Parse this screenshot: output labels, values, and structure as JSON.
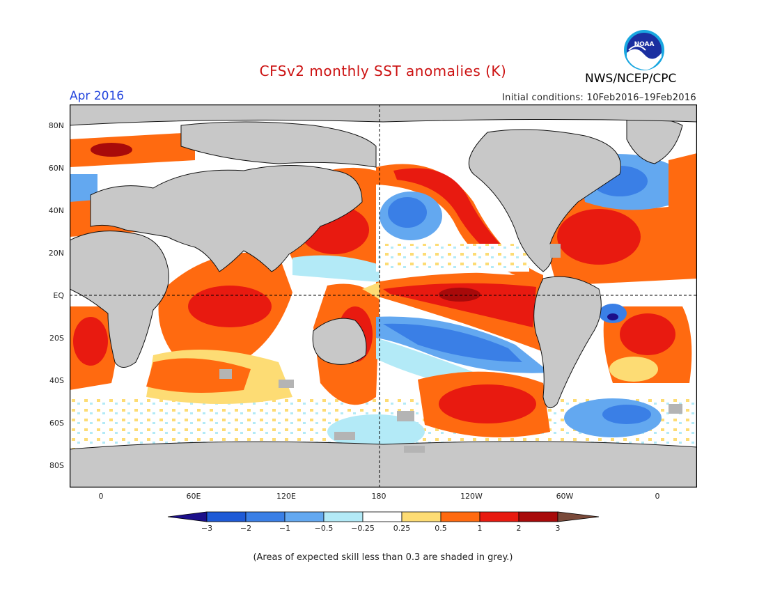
{
  "header": {
    "title": "CFSv2 monthly SST anomalies (K)",
    "org": "NWS/NCEP/CPC",
    "logo_text": "NOAA",
    "month": "Apr 2016",
    "initial_conditions": "Initial conditions: 10Feb2016–19Feb2016"
  },
  "map": {
    "lat_labels": [
      "80N",
      "60N",
      "40N",
      "20N",
      "EQ",
      "20S",
      "40S",
      "60S",
      "80S"
    ],
    "lon_labels": [
      "0",
      "60E",
      "120E",
      "180",
      "120W",
      "60W",
      "0"
    ],
    "land_color": "#c8c8c8",
    "low_skill_color": "#b4b4b4"
  },
  "colorbar": {
    "labels": [
      "−3",
      "−2",
      "−1",
      "−0.5",
      "−0.25",
      "0.25",
      "0.5",
      "1",
      "2",
      "3"
    ],
    "colors": [
      "#1c0f8a",
      "#1e5ad6",
      "#3a7fe6",
      "#63a8f0",
      "#b3eaf7",
      "#ffffff",
      "#fddc74",
      "#ff6a10",
      "#e81a10",
      "#a80a0a",
      "#7a4a3a"
    ]
  },
  "footnote": "(Areas of expected skill less than 0.3 are shaded in grey.)"
}
